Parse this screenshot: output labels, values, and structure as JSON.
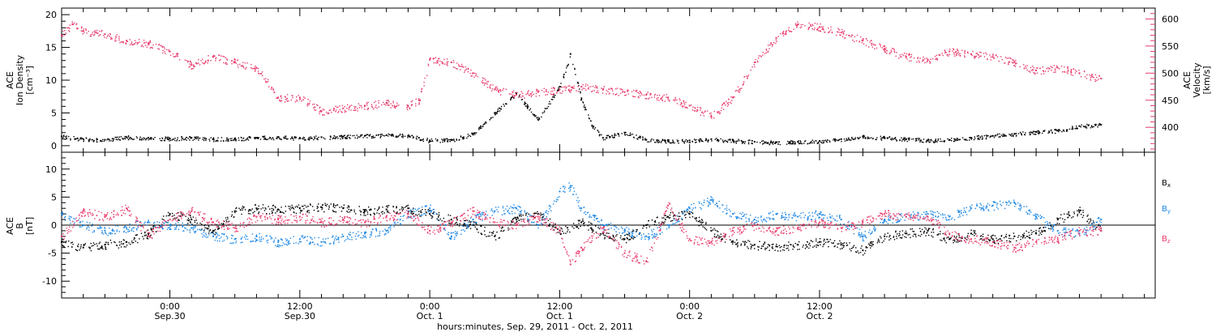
{
  "chart_data": [
    {
      "type": "scatter",
      "title": "",
      "ylabel_left": [
        "ACE",
        "Ion Density",
        "[cm⁻³]"
      ],
      "ylabel_right": [
        "ACE",
        "Velocity",
        "[km/s]"
      ],
      "ylim_left": [
        -1,
        21
      ],
      "ylim_right": [
        354,
        620
      ],
      "yticks_left": [
        0,
        5,
        10,
        15,
        20
      ],
      "yticks_right": [
        400,
        450,
        500,
        550,
        600
      ],
      "series": [
        {
          "axis": "left",
          "color": "#000000",
          "points": [
            [
              0,
              1.4
            ],
            [
              2,
              1.0
            ],
            [
              4,
              0.9
            ],
            [
              6,
              1.3
            ],
            [
              8,
              1.2
            ],
            [
              10,
              1.1
            ],
            [
              12,
              1.2
            ],
            [
              14,
              1.0
            ],
            [
              16,
              1.1
            ],
            [
              18,
              1.2
            ],
            [
              20,
              1.3
            ],
            [
              22,
              1.2
            ],
            [
              24,
              1.3
            ],
            [
              26,
              1.4
            ],
            [
              28,
              1.5
            ],
            [
              30,
              1.6
            ],
            [
              32,
              1.5
            ],
            [
              33,
              1.2
            ],
            [
              34,
              0.8
            ],
            [
              36,
              0.9
            ],
            [
              38,
              1.8
            ],
            [
              40,
              5.0
            ],
            [
              42,
              8.0
            ],
            [
              43,
              6.0
            ],
            [
              44,
              4.0
            ],
            [
              46,
              9.0
            ],
            [
              47,
              14.0
            ],
            [
              48,
              7.0
            ],
            [
              49,
              3.0
            ],
            [
              50,
              1.2
            ],
            [
              52,
              2.0
            ],
            [
              54,
              0.9
            ],
            [
              56,
              0.7
            ],
            [
              58,
              0.8
            ],
            [
              60,
              1.0
            ],
            [
              62,
              0.8
            ],
            [
              64,
              0.6
            ],
            [
              66,
              0.5
            ],
            [
              68,
              0.6
            ],
            [
              70,
              0.7
            ],
            [
              72,
              1.0
            ],
            [
              74,
              1.4
            ],
            [
              76,
              1.2
            ],
            [
              78,
              1.0
            ],
            [
              80,
              0.8
            ],
            [
              82,
              0.9
            ],
            [
              84,
              1.2
            ],
            [
              86,
              1.5
            ],
            [
              88,
              1.8
            ],
            [
              90,
              2.1
            ],
            [
              92,
              2.3
            ],
            [
              94,
              3.0
            ],
            [
              96,
              3.2
            ]
          ]
        },
        {
          "axis": "right",
          "color": "#e83c6c",
          "points": [
            [
              0,
              570
            ],
            [
              1,
              590
            ],
            [
              2,
              578
            ],
            [
              4,
              572
            ],
            [
              6,
              560
            ],
            [
              8,
              555
            ],
            [
              10,
              540
            ],
            [
              12,
              515
            ],
            [
              14,
              530
            ],
            [
              16,
              520
            ],
            [
              18,
              510
            ],
            [
              20,
              455
            ],
            [
              22,
              455
            ],
            [
              24,
              430
            ],
            [
              26,
              435
            ],
            [
              28,
              440
            ],
            [
              30,
              445
            ],
            [
              32,
              440
            ],
            [
              33,
              450
            ],
            [
              34,
              525
            ],
            [
              36,
              520
            ],
            [
              38,
              500
            ],
            [
              40,
              470
            ],
            [
              42,
              460
            ],
            [
              44,
              465
            ],
            [
              46,
              470
            ],
            [
              48,
              475
            ],
            [
              50,
              470
            ],
            [
              52,
              465
            ],
            [
              54,
              460
            ],
            [
              56,
              455
            ],
            [
              58,
              440
            ],
            [
              60,
              420
            ],
            [
              62,
              455
            ],
            [
              64,
              520
            ],
            [
              66,
              565
            ],
            [
              68,
              590
            ],
            [
              70,
              585
            ],
            [
              72,
              575
            ],
            [
              74,
              560
            ],
            [
              76,
              545
            ],
            [
              78,
              530
            ],
            [
              80,
              525
            ],
            [
              82,
              540
            ],
            [
              84,
              535
            ],
            [
              86,
              530
            ],
            [
              88,
              520
            ],
            [
              90,
              505
            ],
            [
              92,
              510
            ],
            [
              94,
              500
            ],
            [
              96,
              490
            ]
          ]
        }
      ]
    },
    {
      "type": "scatter",
      "title": "",
      "ylabel_left": [
        "ACE",
        "B",
        "[nT]"
      ],
      "ylim": [
        -13,
        13
      ],
      "yticks": [
        -10,
        -5,
        0,
        5,
        10
      ],
      "zero_line": true,
      "series": [
        {
          "name": "Bx",
          "color": "#000000",
          "points": [
            [
              0,
              -3.0
            ],
            [
              2,
              -4.0
            ],
            [
              4,
              -3.5
            ],
            [
              6,
              -3.0
            ],
            [
              8,
              -1.5
            ],
            [
              10,
              2.0
            ],
            [
              12,
              1.0
            ],
            [
              14,
              -1.0
            ],
            [
              16,
              2.5
            ],
            [
              18,
              3.0
            ],
            [
              20,
              2.8
            ],
            [
              22,
              3.0
            ],
            [
              24,
              3.2
            ],
            [
              26,
              3.0
            ],
            [
              28,
              2.5
            ],
            [
              30,
              2.8
            ],
            [
              32,
              3.0
            ],
            [
              34,
              2.0
            ],
            [
              36,
              1.0
            ],
            [
              38,
              0.0
            ],
            [
              40,
              -2.0
            ],
            [
              42,
              1.0
            ],
            [
              44,
              2.0
            ],
            [
              46,
              -1.0
            ],
            [
              48,
              0.5
            ],
            [
              50,
              -1.5
            ],
            [
              52,
              -2.5
            ],
            [
              54,
              0.0
            ],
            [
              56,
              1.5
            ],
            [
              58,
              2.0
            ],
            [
              60,
              -1.0
            ],
            [
              62,
              -3.0
            ],
            [
              64,
              -3.5
            ],
            [
              66,
              -3.8
            ],
            [
              68,
              -3.5
            ],
            [
              70,
              -3.0
            ],
            [
              72,
              -3.5
            ],
            [
              74,
              -4.5
            ],
            [
              76,
              -2.0
            ],
            [
              78,
              -1.5
            ],
            [
              80,
              -1.0
            ],
            [
              82,
              -2.5
            ],
            [
              84,
              -1.5
            ],
            [
              86,
              -2.5
            ],
            [
              88,
              -2.0
            ],
            [
              90,
              -1.5
            ],
            [
              92,
              1.0
            ],
            [
              94,
              2.5
            ],
            [
              96,
              -1.0
            ]
          ]
        },
        {
          "name": "By",
          "color": "#1e88e5",
          "points": [
            [
              0,
              2.0
            ],
            [
              2,
              0.0
            ],
            [
              4,
              -1.0
            ],
            [
              6,
              -0.5
            ],
            [
              8,
              0.5
            ],
            [
              10,
              0.0
            ],
            [
              12,
              -0.5
            ],
            [
              14,
              -2.0
            ],
            [
              16,
              -2.5
            ],
            [
              18,
              -2.0
            ],
            [
              20,
              -3.0
            ],
            [
              22,
              -2.5
            ],
            [
              24,
              -3.0
            ],
            [
              26,
              -2.0
            ],
            [
              28,
              -1.5
            ],
            [
              30,
              -1.0
            ],
            [
              32,
              2.0
            ],
            [
              34,
              3.0
            ],
            [
              36,
              -2.0
            ],
            [
              38,
              1.0
            ],
            [
              40,
              2.5
            ],
            [
              42,
              3.0
            ],
            [
              44,
              0.0
            ],
            [
              46,
              6.0
            ],
            [
              47,
              7.0
            ],
            [
              48,
              3.0
            ],
            [
              50,
              0.0
            ],
            [
              52,
              -1.0
            ],
            [
              54,
              -2.0
            ],
            [
              56,
              0.0
            ],
            [
              58,
              3.0
            ],
            [
              60,
              4.5
            ],
            [
              62,
              2.0
            ],
            [
              64,
              1.0
            ],
            [
              66,
              2.0
            ],
            [
              68,
              1.5
            ],
            [
              70,
              2.0
            ],
            [
              72,
              1.0
            ],
            [
              74,
              -2.0
            ],
            [
              76,
              1.0
            ],
            [
              78,
              1.5
            ],
            [
              80,
              2.0
            ],
            [
              82,
              1.5
            ],
            [
              84,
              3.0
            ],
            [
              86,
              3.5
            ],
            [
              88,
              4.0
            ],
            [
              90,
              1.5
            ],
            [
              92,
              -1.0
            ],
            [
              94,
              -1.5
            ],
            [
              96,
              1.0
            ]
          ]
        },
        {
          "name": "Bz",
          "color": "#e83c6c",
          "points": [
            [
              0,
              -2.0
            ],
            [
              2,
              2.5
            ],
            [
              4,
              1.5
            ],
            [
              6,
              3.0
            ],
            [
              8,
              -2.0
            ],
            [
              10,
              1.0
            ],
            [
              12,
              2.5
            ],
            [
              14,
              0.5
            ],
            [
              16,
              -0.5
            ],
            [
              18,
              1.5
            ],
            [
              20,
              1.0
            ],
            [
              22,
              1.5
            ],
            [
              24,
              0.5
            ],
            [
              26,
              1.0
            ],
            [
              28,
              0.5
            ],
            [
              30,
              1.5
            ],
            [
              32,
              2.0
            ],
            [
              34,
              -1.0
            ],
            [
              36,
              0.5
            ],
            [
              38,
              2.5
            ],
            [
              40,
              0.5
            ],
            [
              42,
              0.0
            ],
            [
              44,
              1.5
            ],
            [
              46,
              -1.0
            ],
            [
              47,
              -7.0
            ],
            [
              48,
              -4.0
            ],
            [
              50,
              -0.5
            ],
            [
              52,
              -5.0
            ],
            [
              54,
              -6.5
            ],
            [
              56,
              3.5
            ],
            [
              58,
              -2.5
            ],
            [
              60,
              -3.0
            ],
            [
              62,
              -1.0
            ],
            [
              64,
              0.0
            ],
            [
              66,
              -1.0
            ],
            [
              68,
              -0.5
            ],
            [
              70,
              0.5
            ],
            [
              72,
              -0.5
            ],
            [
              74,
              0.5
            ],
            [
              76,
              2.0
            ],
            [
              78,
              1.5
            ],
            [
              80,
              1.5
            ],
            [
              82,
              -1.5
            ],
            [
              84,
              -2.5
            ],
            [
              86,
              -3.0
            ],
            [
              88,
              -4.0
            ],
            [
              90,
              -3.0
            ],
            [
              92,
              -2.5
            ],
            [
              94,
              -1.0
            ],
            [
              96,
              -1.0
            ]
          ]
        }
      ]
    }
  ],
  "xaxis": {
    "hours_range": [
      0,
      101
    ],
    "ticks_major": [
      {
        "h": 10,
        "time": "0:00",
        "date": "Sep.30"
      },
      {
        "h": 22,
        "time": "12:00",
        "date": "Sep.30"
      },
      {
        "h": 34,
        "time": "0:00",
        "date": "Oct. 1"
      },
      {
        "h": 46,
        "time": "12:00",
        "date": "Oct. 1"
      },
      {
        "h": 58,
        "time": "0:00",
        "date": "Oct. 2"
      },
      {
        "h": 70,
        "time": "12:00",
        "date": "Oct. 2"
      }
    ],
    "label": "hours:minutes, Sep. 29, 2011 - Oct.  2, 2011"
  },
  "legend": {
    "bx": "B",
    "bx_sub": "x",
    "by": "B",
    "by_sub": "y",
    "bz": "B",
    "bz_sub": "z"
  },
  "colors": {
    "density": "#000000",
    "velocity": "#e83c6c",
    "bx": "#000000",
    "by": "#1e88e5",
    "bz": "#e83c6c"
  }
}
